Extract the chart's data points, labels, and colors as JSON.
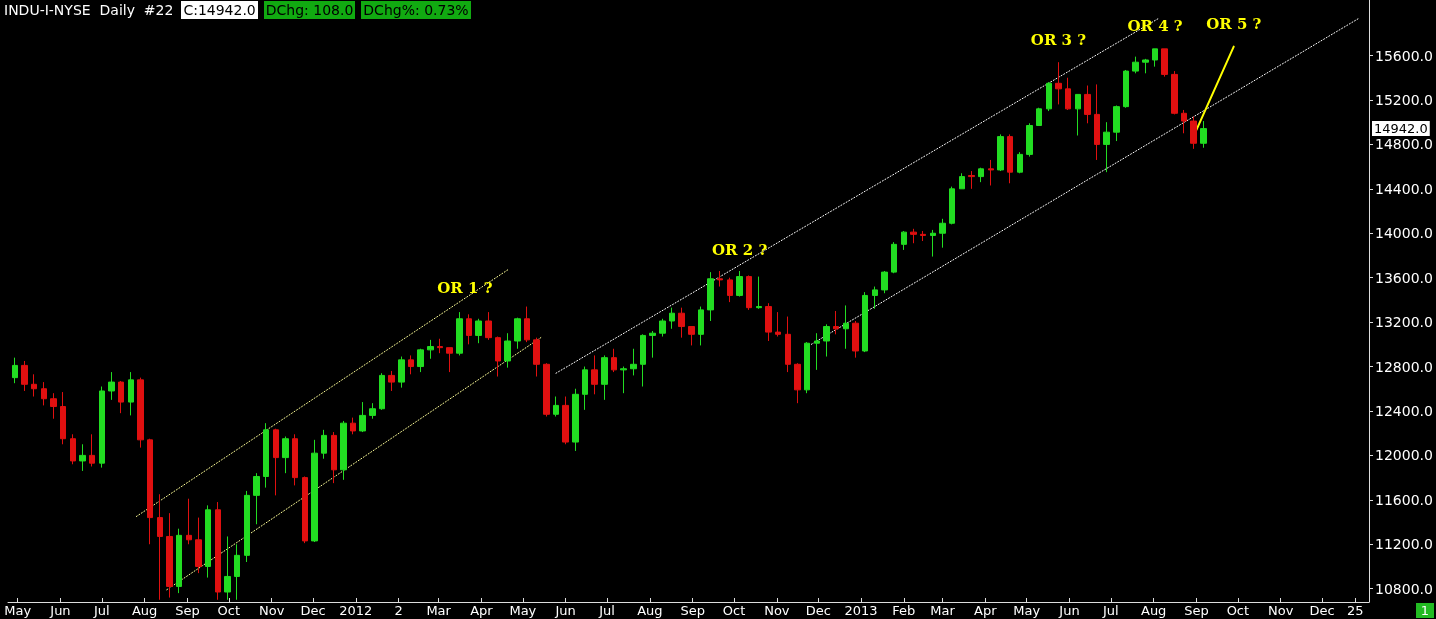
{
  "chart_data": {
    "type": "candlestick",
    "title": "INDU-I-NYSE  Daily  #22",
    "x": [
      "2011-04-29",
      "2011-05-06",
      "2011-05-13",
      "2011-05-20",
      "2011-05-27",
      "2011-06-03",
      "2011-06-10",
      "2011-06-17",
      "2011-06-24",
      "2011-07-01",
      "2011-07-08",
      "2011-07-15",
      "2011-07-22",
      "2011-07-29",
      "2011-08-05",
      "2011-08-12",
      "2011-08-19",
      "2011-08-26",
      "2011-09-02",
      "2011-09-09",
      "2011-09-16",
      "2011-09-23",
      "2011-09-30",
      "2011-10-07",
      "2011-10-14",
      "2011-10-21",
      "2011-10-28",
      "2011-11-04",
      "2011-11-11",
      "2011-11-18",
      "2011-11-25",
      "2011-12-02",
      "2011-12-09",
      "2011-12-16",
      "2011-12-23",
      "2011-12-30",
      "2012-01-06",
      "2012-01-13",
      "2012-01-20",
      "2012-01-27",
      "2012-02-03",
      "2012-02-10",
      "2012-02-17",
      "2012-02-24",
      "2012-03-02",
      "2012-03-09",
      "2012-03-16",
      "2012-03-23",
      "2012-03-30",
      "2012-04-06",
      "2012-04-13",
      "2012-04-20",
      "2012-04-27",
      "2012-05-04",
      "2012-05-11",
      "2012-05-18",
      "2012-05-25",
      "2012-06-01",
      "2012-06-08",
      "2012-06-15",
      "2012-06-22",
      "2012-06-29",
      "2012-07-06",
      "2012-07-13",
      "2012-07-20",
      "2012-07-27",
      "2012-08-03",
      "2012-08-10",
      "2012-08-17",
      "2012-08-24",
      "2012-08-31",
      "2012-09-07",
      "2012-09-14",
      "2012-09-21",
      "2012-09-28",
      "2012-10-05",
      "2012-10-12",
      "2012-10-19",
      "2012-10-26",
      "2012-11-02",
      "2012-11-09",
      "2012-11-16",
      "2012-11-23",
      "2012-11-30",
      "2012-12-07",
      "2012-12-14",
      "2012-12-21",
      "2012-12-28",
      "2013-01-04",
      "2013-01-11",
      "2013-01-18",
      "2013-01-25",
      "2013-02-01",
      "2013-02-08",
      "2013-02-15",
      "2013-02-22",
      "2013-03-01",
      "2013-03-08",
      "2013-03-15",
      "2013-03-22",
      "2013-03-29",
      "2013-04-05",
      "2013-04-12",
      "2013-04-19",
      "2013-04-26",
      "2013-05-03",
      "2013-05-10",
      "2013-05-17",
      "2013-05-24",
      "2013-05-31",
      "2013-06-07",
      "2013-06-14",
      "2013-06-21",
      "2013-06-28",
      "2013-07-05",
      "2013-07-12",
      "2013-07-19",
      "2013-07-26",
      "2013-08-02",
      "2013-08-09",
      "2013-08-16",
      "2013-08-23",
      "2013-08-30",
      "2013-09-06"
    ],
    "ohlc": [
      [
        12700,
        12880,
        12650,
        12810
      ],
      [
        12810,
        12850,
        12580,
        12640
      ],
      [
        12640,
        12730,
        12530,
        12600
      ],
      [
        12600,
        12660,
        12450,
        12510
      ],
      [
        12510,
        12560,
        12330,
        12440
      ],
      [
        12440,
        12570,
        12100,
        12150
      ],
      [
        12150,
        12190,
        11920,
        11950
      ],
      [
        11950,
        12100,
        11860,
        12000
      ],
      [
        12000,
        12190,
        11900,
        11930
      ],
      [
        11930,
        12620,
        11890,
        12580
      ],
      [
        12580,
        12750,
        12500,
        12660
      ],
      [
        12660,
        12670,
        12380,
        12480
      ],
      [
        12480,
        12750,
        12360,
        12680
      ],
      [
        12680,
        12700,
        12070,
        12140
      ],
      [
        12140,
        12150,
        11200,
        11440
      ],
      [
        11440,
        11650,
        10700,
        11270
      ],
      [
        11270,
        11480,
        10720,
        10820
      ],
      [
        10820,
        11340,
        10760,
        11280
      ],
      [
        11280,
        11610,
        11200,
        11240
      ],
      [
        11240,
        11440,
        10940,
        11000
      ],
      [
        11000,
        11550,
        10900,
        11510
      ],
      [
        11510,
        11580,
        10700,
        10770
      ],
      [
        10770,
        11270,
        10700,
        10910
      ],
      [
        10910,
        11200,
        10700,
        11100
      ],
      [
        11100,
        11680,
        11040,
        11640
      ],
      [
        11640,
        11840,
        11380,
        11810
      ],
      [
        11810,
        12290,
        11710,
        12230
      ],
      [
        12230,
        12240,
        11640,
        11980
      ],
      [
        11980,
        12170,
        11840,
        12150
      ],
      [
        12150,
        12190,
        11730,
        11800
      ],
      [
        11800,
        11810,
        11210,
        11230
      ],
      [
        11230,
        12140,
        11220,
        12020
      ],
      [
        12020,
        12230,
        11970,
        12180
      ],
      [
        12180,
        12210,
        11750,
        11870
      ],
      [
        11870,
        12310,
        11780,
        12290
      ],
      [
        12290,
        12340,
        12190,
        12220
      ],
      [
        12220,
        12480,
        12210,
        12360
      ],
      [
        12360,
        12470,
        12330,
        12420
      ],
      [
        12420,
        12740,
        12410,
        12720
      ],
      [
        12720,
        12760,
        12580,
        12660
      ],
      [
        12660,
        12890,
        12610,
        12860
      ],
      [
        12860,
        12900,
        12730,
        12800
      ],
      [
        12800,
        12960,
        12750,
        12950
      ],
      [
        12950,
        13040,
        12870,
        12980
      ],
      [
        12980,
        13050,
        12920,
        12970
      ],
      [
        12970,
        12970,
        12750,
        12920
      ],
      [
        12920,
        13290,
        12900,
        13230
      ],
      [
        13230,
        13270,
        13000,
        13080
      ],
      [
        13080,
        13230,
        13010,
        13210
      ],
      [
        13210,
        13290,
        13040,
        13060
      ],
      [
        13060,
        13070,
        12710,
        12850
      ],
      [
        12850,
        13100,
        12790,
        13030
      ],
      [
        13030,
        13240,
        12960,
        13230
      ],
      [
        13230,
        13340,
        13020,
        13040
      ],
      [
        13040,
        13060,
        12710,
        12820
      ],
      [
        12820,
        12830,
        12350,
        12370
      ],
      [
        12370,
        12530,
        12350,
        12450
      ],
      [
        12450,
        12530,
        12100,
        12120
      ],
      [
        12120,
        12600,
        12040,
        12550
      ],
      [
        12550,
        12800,
        12410,
        12770
      ],
      [
        12770,
        12900,
        12550,
        12640
      ],
      [
        12640,
        12900,
        12500,
        12880
      ],
      [
        12880,
        12960,
        12750,
        12770
      ],
      [
        12770,
        12800,
        12560,
        12780
      ],
      [
        12780,
        12960,
        12720,
        12820
      ],
      [
        12820,
        13090,
        12620,
        13080
      ],
      [
        13080,
        13120,
        12880,
        13100
      ],
      [
        13100,
        13230,
        13070,
        13210
      ],
      [
        13210,
        13330,
        13140,
        13280
      ],
      [
        13280,
        13330,
        13060,
        13160
      ],
      [
        13160,
        13160,
        12990,
        13090
      ],
      [
        13090,
        13340,
        12990,
        13310
      ],
      [
        13310,
        13650,
        13210,
        13590
      ],
      [
        13590,
        13660,
        13520,
        13580
      ],
      [
        13580,
        13600,
        13380,
        13440
      ],
      [
        13440,
        13660,
        13430,
        13610
      ],
      [
        13610,
        13620,
        13310,
        13330
      ],
      [
        13330,
        13610,
        13320,
        13340
      ],
      [
        13340,
        13370,
        13030,
        13110
      ],
      [
        13110,
        13290,
        13070,
        13090
      ],
      [
        13090,
        13250,
        12750,
        12820
      ],
      [
        12820,
        12830,
        12470,
        12590
      ],
      [
        12590,
        13020,
        12560,
        13010
      ],
      [
        13010,
        13100,
        12770,
        13030
      ],
      [
        13030,
        13180,
        12890,
        13160
      ],
      [
        13160,
        13300,
        13090,
        13140
      ],
      [
        13140,
        13350,
        12960,
        13190
      ],
      [
        13190,
        13210,
        12880,
        12940
      ],
      [
        12940,
        13470,
        12930,
        13440
      ],
      [
        13440,
        13520,
        13320,
        13490
      ],
      [
        13490,
        13660,
        13460,
        13650
      ],
      [
        13650,
        13920,
        13640,
        13900
      ],
      [
        13900,
        14020,
        13850,
        14010
      ],
      [
        14010,
        14040,
        13910,
        13990
      ],
      [
        13990,
        14020,
        13930,
        13980
      ],
      [
        13980,
        14030,
        13790,
        14000
      ],
      [
        14000,
        14130,
        13870,
        14090
      ],
      [
        14090,
        14420,
        14080,
        14400
      ],
      [
        14400,
        14540,
        14400,
        14510
      ],
      [
        14520,
        14560,
        14400,
        14510
      ],
      [
        14510,
        14590,
        14460,
        14580
      ],
      [
        14580,
        14660,
        14430,
        14570
      ],
      [
        14570,
        14890,
        14560,
        14870
      ],
      [
        14870,
        14890,
        14450,
        14550
      ],
      [
        14550,
        14730,
        14540,
        14710
      ],
      [
        14710,
        14990,
        14690,
        14970
      ],
      [
        14970,
        15130,
        14970,
        15120
      ],
      [
        15120,
        15360,
        15100,
        15350
      ],
      [
        15350,
        15540,
        15160,
        15300
      ],
      [
        15300,
        15400,
        15110,
        15120
      ],
      [
        15120,
        15250,
        14880,
        15250
      ],
      [
        15250,
        15330,
        14990,
        15070
      ],
      [
        15070,
        15340,
        14660,
        14800
      ],
      [
        14800,
        15000,
        14550,
        14910
      ],
      [
        14910,
        15150,
        14830,
        15140
      ],
      [
        15140,
        15470,
        15130,
        15460
      ],
      [
        15460,
        15590,
        15440,
        15540
      ],
      [
        15540,
        15570,
        15440,
        15560
      ],
      [
        15560,
        15660,
        15500,
        15660
      ],
      [
        15660,
        15660,
        15410,
        15430
      ],
      [
        15430,
        15460,
        15070,
        15080
      ],
      [
        15080,
        15110,
        14900,
        15010
      ],
      [
        15010,
        15050,
        14760,
        14810
      ],
      [
        14810,
        15010,
        14770,
        14942
      ]
    ],
    "colors": [
      "#22dd22",
      "#e01010",
      "#e01010",
      "#e01010",
      "#e01010",
      "#e01010",
      "#e01010",
      "#22dd22",
      "#e01010",
      "#22dd22",
      "#22dd22",
      "#e01010",
      "#22dd22",
      "#e01010",
      "#e01010",
      "#e01010",
      "#e01010",
      "#22dd22",
      "#e01010",
      "#e01010",
      "#22dd22",
      "#e01010",
      "#22dd22",
      "#22dd22",
      "#22dd22",
      "#22dd22",
      "#22dd22",
      "#e01010",
      "#22dd22",
      "#e01010",
      "#e01010",
      "#22dd22",
      "#22dd22",
      "#e01010",
      "#22dd22",
      "#e01010",
      "#22dd22",
      "#22dd22",
      "#22dd22",
      "#e01010",
      "#22dd22",
      "#e01010",
      "#22dd22",
      "#22dd22",
      "#e01010",
      "#e01010",
      "#22dd22",
      "#e01010",
      "#22dd22",
      "#e01010",
      "#e01010",
      "#22dd22",
      "#22dd22",
      "#e01010",
      "#e01010",
      "#e01010",
      "#22dd22",
      "#e01010",
      "#22dd22",
      "#22dd22",
      "#e01010",
      "#22dd22",
      "#e01010",
      "#22dd22",
      "#22dd22",
      "#22dd22",
      "#22dd22",
      "#22dd22",
      "#22dd22",
      "#e01010",
      "#e01010",
      "#22dd22",
      "#22dd22",
      "#e01010",
      "#e01010",
      "#22dd22",
      "#e01010",
      "#22dd22",
      "#e01010",
      "#e01010",
      "#e01010",
      "#e01010",
      "#22dd22",
      "#22dd22",
      "#22dd22",
      "#e01010",
      "#22dd22",
      "#e01010",
      "#22dd22",
      "#22dd22",
      "#22dd22",
      "#22dd22",
      "#22dd22",
      "#e01010",
      "#e01010",
      "#22dd22",
      "#22dd22",
      "#22dd22",
      "#22dd22",
      "#e01010",
      "#22dd22",
      "#e01010",
      "#22dd22",
      "#e01010",
      "#22dd22",
      "#22dd22",
      "#22dd22",
      "#22dd22",
      "#e01010",
      "#e01010",
      "#22dd22",
      "#e01010",
      "#e01010",
      "#22dd22",
      "#22dd22",
      "#22dd22",
      "#22dd22",
      "#22dd22",
      "#22dd22",
      "#e01010",
      "#e01010",
      "#e01010",
      "#e01010",
      "#22dd22"
    ],
    "series": [
      {
        "type": "line",
        "x": [
          "2011-07-26",
          "2012-04-20"
        ],
        "values": [
          11450,
          13670
        ],
        "color": "#ffff99",
        "line_style": "dotted",
        "marker": "none"
      },
      {
        "type": "line",
        "x": [
          "2011-08-17",
          "2012-05-14"
        ],
        "values": [
          10790,
          13060
        ],
        "color": "#ffff99",
        "line_style": "dotted",
        "marker": "none"
      },
      {
        "type": "line",
        "x": [
          "2012-05-25",
          "2013-08-04"
        ],
        "values": [
          12740,
          15930
        ],
        "color": "#ffffff",
        "line_style": "dotted",
        "marker": "none"
      },
      {
        "type": "line",
        "x": [
          "2012-11-26",
          "2013-12-27"
        ],
        "values": [
          13000,
          15930
        ],
        "color": "#ffffff",
        "line_style": "dotted",
        "marker": "none"
      },
      {
        "type": "line",
        "x": [
          "2013-09-01",
          "2013-09-28"
        ],
        "values": [
          14930,
          15680
        ],
        "color": "#ffff00",
        "line_style": "solid",
        "marker": "none"
      }
    ],
    "xlim": [
      "2011-04-24",
      "2014-01-04"
    ],
    "xticks": [
      {
        "value": "2011-05-01",
        "label": "May"
      },
      {
        "value": "2011-06-01",
        "label": "Jun"
      },
      {
        "value": "2011-07-01",
        "label": "Jul"
      },
      {
        "value": "2011-08-01",
        "label": "Aug"
      },
      {
        "value": "2011-09-01",
        "label": "Sep"
      },
      {
        "value": "2011-10-01",
        "label": "Oct"
      },
      {
        "value": "2011-11-01",
        "label": "Nov"
      },
      {
        "value": "2011-12-01",
        "label": "Dec"
      },
      {
        "value": "2012-01-01",
        "label": "2012"
      },
      {
        "value": "2012-02-01",
        "label": "2"
      },
      {
        "value": "2012-03-01",
        "label": "Mar"
      },
      {
        "value": "2012-04-01",
        "label": "Apr"
      },
      {
        "value": "2012-05-01",
        "label": "May"
      },
      {
        "value": "2012-06-01",
        "label": "Jun"
      },
      {
        "value": "2012-07-01",
        "label": "Jul"
      },
      {
        "value": "2012-08-01",
        "label": "Aug"
      },
      {
        "value": "2012-09-01",
        "label": "Sep"
      },
      {
        "value": "2012-10-01",
        "label": "Oct"
      },
      {
        "value": "2012-11-01",
        "label": "Nov"
      },
      {
        "value": "2012-12-01",
        "label": "Dec"
      },
      {
        "value": "2013-01-01",
        "label": "2013"
      },
      {
        "value": "2013-02-01",
        "label": "Feb"
      },
      {
        "value": "2013-03-01",
        "label": "Mar"
      },
      {
        "value": "2013-04-01",
        "label": "Apr"
      },
      {
        "value": "2013-05-01",
        "label": "May"
      },
      {
        "value": "2013-06-01",
        "label": "Jun"
      },
      {
        "value": "2013-07-01",
        "label": "Jul"
      },
      {
        "value": "2013-08-01",
        "label": "Aug"
      },
      {
        "value": "2013-09-01",
        "label": "Sep"
      },
      {
        "value": "2013-10-01",
        "label": "Oct"
      },
      {
        "value": "2013-11-01",
        "label": "Nov"
      },
      {
        "value": "2013-12-01",
        "label": "Dec"
      },
      {
        "value": "2013-12-25",
        "label": "25"
      }
    ],
    "ylim": [
      10680,
      16100
    ],
    "yticks": [
      {
        "value": 10800,
        "label": "10800.0"
      },
      {
        "value": 11200,
        "label": "11200.0"
      },
      {
        "value": 11600,
        "label": "11600.0"
      },
      {
        "value": 12000,
        "label": "12000.0"
      },
      {
        "value": 12400,
        "label": "12400.0"
      },
      {
        "value": 12800,
        "label": "12800.0"
      },
      {
        "value": 13200,
        "label": "13200.0"
      },
      {
        "value": 13600,
        "label": "13600.0"
      },
      {
        "value": 14000,
        "label": "14000.0"
      },
      {
        "value": 14400,
        "label": "14400.0"
      },
      {
        "value": 14800,
        "label": "14800.0"
      },
      {
        "value": 15200,
        "label": "15200.0"
      },
      {
        "value": 15600,
        "label": "15600.0"
      }
    ],
    "grid": false,
    "annotations": [
      "C:14942.0",
      "DChg: 108.0",
      "DChg%: 0.73%",
      "14942.0",
      {
        "text": "OR 1 ?",
        "x": "2012-03-20",
        "y": 13300
      },
      {
        "text": "OR 2 ?",
        "x": "2012-10-05",
        "y": 13650
      },
      {
        "text": "OR 3 ?",
        "x": "2013-05-24",
        "y": 15540
      },
      {
        "text": "OR 4 ?",
        "x": "2013-08-02",
        "y": 15660
      },
      {
        "text": "OR 5 ?",
        "x": "2013-09-28",
        "y": 15680
      },
      "1"
    ]
  }
}
